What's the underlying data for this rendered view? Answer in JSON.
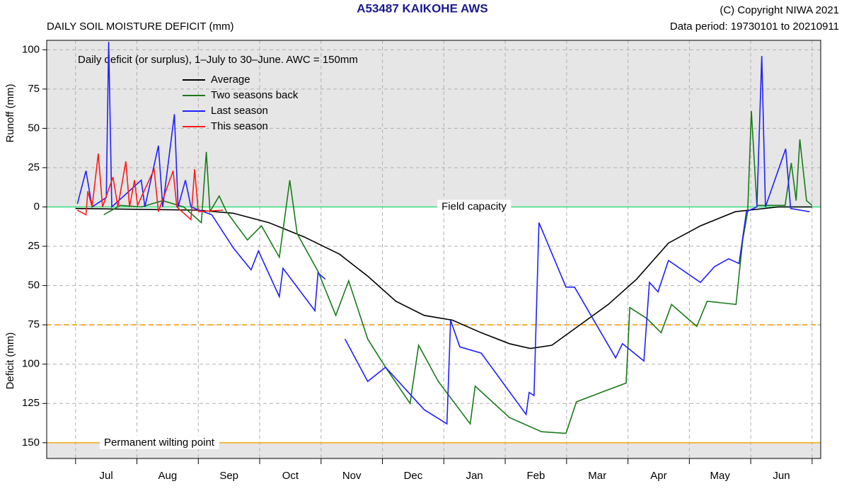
{
  "chart_data": {
    "type": "line",
    "title": "A53487  KAIKOHE AWS",
    "subtitle": "DAILY SOIL MOISTURE DEFICIT (mm)",
    "copyright": "(C) Copyright NIWA  2021",
    "data_period": "Data period:  19730101  to  20210911",
    "annotation": "Daily deficit (or surplus), 1–July to 30–June.  AWC = 150mm",
    "y_label_top": "Runoff (mm)",
    "y_label_bottom": "Deficit (mm)",
    "categories": [
      "Jul",
      "Aug",
      "Sep",
      "Oct",
      "Nov",
      "Dec",
      "Jan",
      "Feb",
      "Mar",
      "Apr",
      "May",
      "Jun"
    ],
    "xlim": [
      -0.47,
      12.14
    ],
    "xticks": [
      0,
      1,
      2,
      3,
      4,
      5,
      6,
      7,
      8,
      9,
      10,
      11,
      12
    ],
    "ylim": [
      -160,
      106
    ],
    "yticks": [
      100,
      75,
      50,
      25,
      0,
      {
        "value": -25,
        "label": "25"
      },
      {
        "value": -50,
        "label": "50"
      },
      {
        "value": -75,
        "label": "75"
      },
      {
        "value": -100,
        "label": "100"
      },
      {
        "value": -125,
        "label": "125"
      },
      {
        "value": -150,
        "label": "150"
      }
    ],
    "grid": true,
    "reference_lines": [
      {
        "label": "Field capacity",
        "value": 0,
        "color": "#4ee08a",
        "dash": false
      },
      {
        "value": -75,
        "color": "#f0a818",
        "dash": true
      },
      {
        "label": "Permanent wilting point",
        "value": -150,
        "color": "#f0b030",
        "dash": false
      }
    ],
    "series": [
      {
        "name": "Average",
        "color": "#000000",
        "x": [
          0,
          1.99,
          2.57,
          3.15,
          3.72,
          4.3,
          4.76,
          5.22,
          5.68,
          6.14,
          6.61,
          7.07,
          7.41,
          7.76,
          8.22,
          8.68,
          9.14,
          9.66,
          10.18,
          10.75,
          11.45,
          12
        ],
        "values": [
          -1,
          -2,
          -4,
          -10,
          -19,
          -30,
          -44,
          -60,
          -69,
          -72,
          -80,
          -87,
          -90,
          -88,
          -75,
          -62,
          -46,
          -23,
          -12,
          -3,
          0,
          0
        ]
      },
      {
        "name": "Two seasons back",
        "color": "#1a7a1a",
        "x": [
          0.46,
          0.73,
          1.07,
          1.42,
          1.76,
          2.05,
          2.13,
          2.19,
          2.34,
          2.46,
          2.8,
          3.03,
          3.32,
          3.49,
          3.61,
          3.95,
          4.24,
          4.45,
          4.76,
          5.05,
          5.45,
          5.59,
          5.91,
          6.43,
          6.51,
          7.07,
          7.59,
          7.99,
          8.16,
          8.56,
          8.97,
          9.03,
          9.31,
          9.54,
          9.71,
          10.12,
          10.29,
          10.76,
          10.87,
          10.95,
          11.01,
          11.1,
          11.56,
          11.66,
          11.74,
          11.8,
          11.91,
          12.0
        ],
        "values": [
          -5,
          1,
          0,
          4,
          0,
          -10,
          35,
          -3,
          7,
          -3,
          -21,
          -12,
          -32,
          17,
          -17,
          -41,
          -69,
          -47,
          -84,
          -102,
          -125,
          -88,
          -111,
          -138,
          -114,
          -134,
          -143,
          -144,
          -124,
          -118,
          -112,
          -64,
          -71,
          -80,
          -62,
          -76,
          -60,
          -62,
          -21,
          -3,
          61,
          1,
          1,
          28,
          4,
          43,
          4,
          1
        ]
      },
      {
        "name": "Last season",
        "color": "#1f1fff",
        "x": [
          0.03,
          0.17,
          0.27,
          0.5,
          0.54,
          0.59,
          1.07,
          1.13,
          1.35,
          1.42,
          1.61,
          1.67,
          1.79,
          1.88,
          2.22,
          2.57,
          2.86,
          2.98,
          3.32,
          3.38,
          3.9,
          3.95,
          4.07,
          null,
          4.39,
          4.76,
          5.05,
          5.68,
          6.05,
          6.11,
          6.26,
          6.61,
          7.34,
          7.39,
          7.47,
          7.55,
          7.99,
          8.13,
          8.8,
          8.91,
          9.26,
          9.35,
          9.49,
          9.66,
          10.18,
          10.41,
          10.64,
          10.81,
          10.93,
          11.1,
          11.18,
          11.24,
          11.57,
          11.65,
          11.96
        ],
        "values": [
          2,
          23,
          0,
          6,
          105,
          0,
          17,
          0,
          39,
          0,
          59,
          0,
          17,
          0,
          -5,
          -26,
          -40,
          -28,
          -57,
          -39,
          -66,
          -42,
          -46,
          null,
          -84,
          -111,
          -102,
          -129,
          -138,
          -72,
          -89,
          -93,
          -132,
          -118,
          -120,
          -10,
          -51,
          -51,
          -96,
          -87,
          -98,
          -48,
          -54,
          -34,
          -48,
          -38,
          -33,
          -36,
          -3,
          0,
          96,
          0,
          37,
          -1,
          -3
        ]
      },
      {
        "name": "This season",
        "color": "#ff1a1a",
        "x": [
          0.03,
          0.17,
          0.2,
          0.27,
          0.37,
          0.44,
          0.61,
          0.69,
          0.82,
          0.88,
          0.96,
          1.01,
          1.28,
          1.35,
          1.59,
          1.65,
          1.88,
          1.94,
          2.0,
          2.4
        ],
        "values": [
          -2,
          -5,
          10,
          0,
          34,
          0,
          19,
          0,
          29,
          0,
          17,
          1,
          24,
          -3,
          23,
          0,
          -8,
          24,
          -3,
          -2
        ]
      }
    ]
  }
}
